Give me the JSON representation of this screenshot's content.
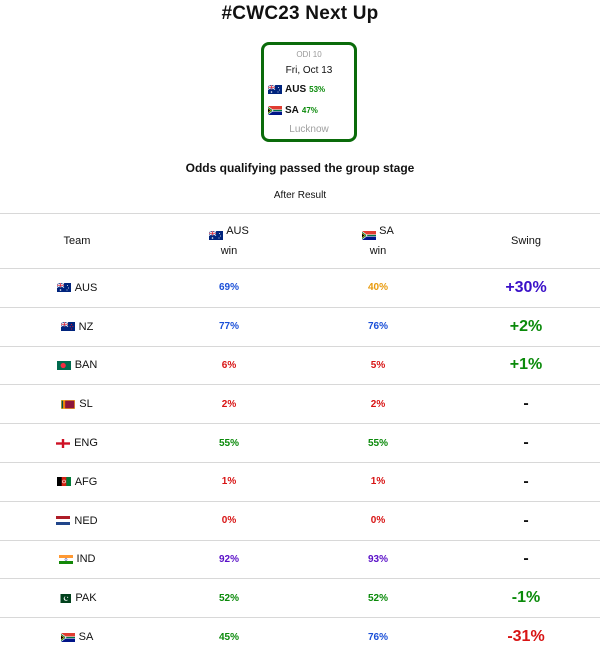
{
  "header": {
    "title": "#CWC23 Next Up"
  },
  "match": {
    "code": "ODI 10",
    "date": "Fri, Oct 13",
    "team1": {
      "name": "AUS",
      "pct": "53%"
    },
    "team2": {
      "name": "SA",
      "pct": "47%"
    },
    "venue": "Lucknow"
  },
  "subtitle": "Odds qualifying passed the group stage",
  "after_label": "After Result",
  "table": {
    "headers": {
      "team": "Team",
      "scenario_a": {
        "team": "AUS",
        "label": "win"
      },
      "scenario_b": {
        "team": "SA",
        "label": "win"
      },
      "swing": "Swing"
    },
    "rows": [
      {
        "team": "AUS",
        "a": "69%",
        "a_color": "#1a4fd8",
        "b": "40%",
        "b_color": "#e89a0c",
        "swing": "+30%",
        "swing_color": "#3a10c8"
      },
      {
        "team": "NZ",
        "a": "77%",
        "a_color": "#1a4fd8",
        "b": "76%",
        "b_color": "#1a4fd8",
        "swing": "+2%",
        "swing_color": "#0a8a0a"
      },
      {
        "team": "BAN",
        "a": "6%",
        "a_color": "#d81414",
        "b": "5%",
        "b_color": "#d81414",
        "swing": "+1%",
        "swing_color": "#0a8a0a"
      },
      {
        "team": "SL",
        "a": "2%",
        "a_color": "#d81414",
        "b": "2%",
        "b_color": "#d81414",
        "swing": "-",
        "swing_color": "#111111"
      },
      {
        "team": "ENG",
        "a": "55%",
        "a_color": "#0a8a0a",
        "b": "55%",
        "b_color": "#0a8a0a",
        "swing": "-",
        "swing_color": "#111111"
      },
      {
        "team": "AFG",
        "a": "1%",
        "a_color": "#d81414",
        "b": "1%",
        "b_color": "#d81414",
        "swing": "-",
        "swing_color": "#111111"
      },
      {
        "team": "NED",
        "a": "0%",
        "a_color": "#d81414",
        "b": "0%",
        "b_color": "#d81414",
        "swing": "-",
        "swing_color": "#111111"
      },
      {
        "team": "IND",
        "a": "92%",
        "a_color": "#5a10c8",
        "b": "93%",
        "b_color": "#5a10c8",
        "swing": "-",
        "swing_color": "#111111"
      },
      {
        "team": "PAK",
        "a": "52%",
        "a_color": "#0a8a0a",
        "b": "52%",
        "b_color": "#0a8a0a",
        "swing": "-1%",
        "swing_color": "#0a8a0a"
      },
      {
        "team": "SA",
        "a": "45%",
        "a_color": "#0a8a0a",
        "b": "76%",
        "b_color": "#1a4fd8",
        "swing": "-31%",
        "swing_color": "#d81414"
      }
    ]
  },
  "flag_icons": {
    "AUS": "australia-flag-icon",
    "NZ": "new-zealand-flag-icon",
    "BAN": "bangladesh-flag-icon",
    "SL": "sri-lanka-flag-icon",
    "ENG": "england-flag-icon",
    "AFG": "afghanistan-flag-icon",
    "NED": "netherlands-flag-icon",
    "IND": "india-flag-icon",
    "PAK": "pakistan-flag-icon",
    "SA": "south-africa-flag-icon"
  },
  "colors": {
    "card_border": "#0a6b0a",
    "divider": "#d8d8d8"
  }
}
